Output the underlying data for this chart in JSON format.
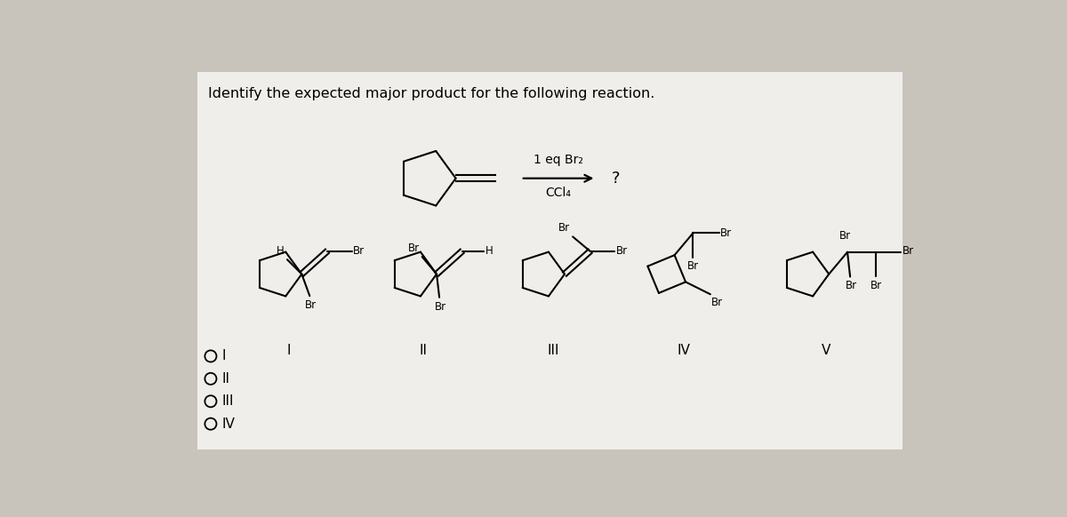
{
  "bg_color": "#c8c4bc",
  "card_color": "#f0eeeb",
  "title": "Identify the expected major product for the following reaction.",
  "reagent_line": "1 eq Br₂",
  "reagent_solvent": "CCl₄",
  "question_mark": "?",
  "choices": [
    "I",
    "II",
    "III",
    "IV"
  ],
  "roman_labels": [
    "I",
    "II",
    "III",
    "IV",
    "V"
  ]
}
